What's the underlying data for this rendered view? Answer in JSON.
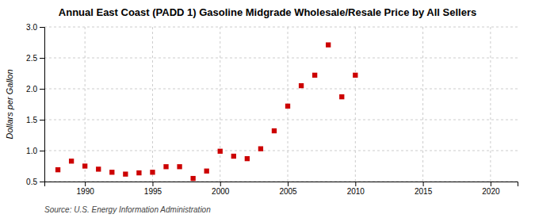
{
  "chart_data": {
    "type": "scatter",
    "title": "Annual East Coast (PADD 1) Gasoline Midgrade Wholesale/Resale Price by All Sellers",
    "ylabel": "Dollars per Gallon",
    "source": "Source: U.S. Energy Information Administration",
    "x": [
      1988,
      1989,
      1990,
      1991,
      1992,
      1993,
      1994,
      1995,
      1996,
      1997,
      1998,
      1999,
      2000,
      2001,
      2002,
      2003,
      2004,
      2005,
      2006,
      2007,
      2008,
      2009,
      2010
    ],
    "values": [
      0.69,
      0.83,
      0.75,
      0.7,
      0.65,
      0.62,
      0.64,
      0.65,
      0.74,
      0.74,
      0.55,
      0.67,
      0.99,
      0.91,
      0.87,
      1.03,
      1.32,
      1.72,
      2.05,
      2.22,
      2.71,
      1.87,
      2.22
    ],
    "color": "#cc0000",
    "marker": "square",
    "xlim": [
      1987,
      2022
    ],
    "xticks": [
      1990,
      1995,
      2000,
      2005,
      2010,
      2015,
      2020
    ],
    "ylim": [
      0.5,
      3.0
    ],
    "yticks": [
      0.5,
      {
        "value": 1.0,
        "label": "1.0"
      },
      1.5,
      {
        "value": 2.0,
        "label": "2.0"
      },
      2.5,
      {
        "value": 3.0,
        "label": "3.0"
      }
    ],
    "grid": true
  }
}
